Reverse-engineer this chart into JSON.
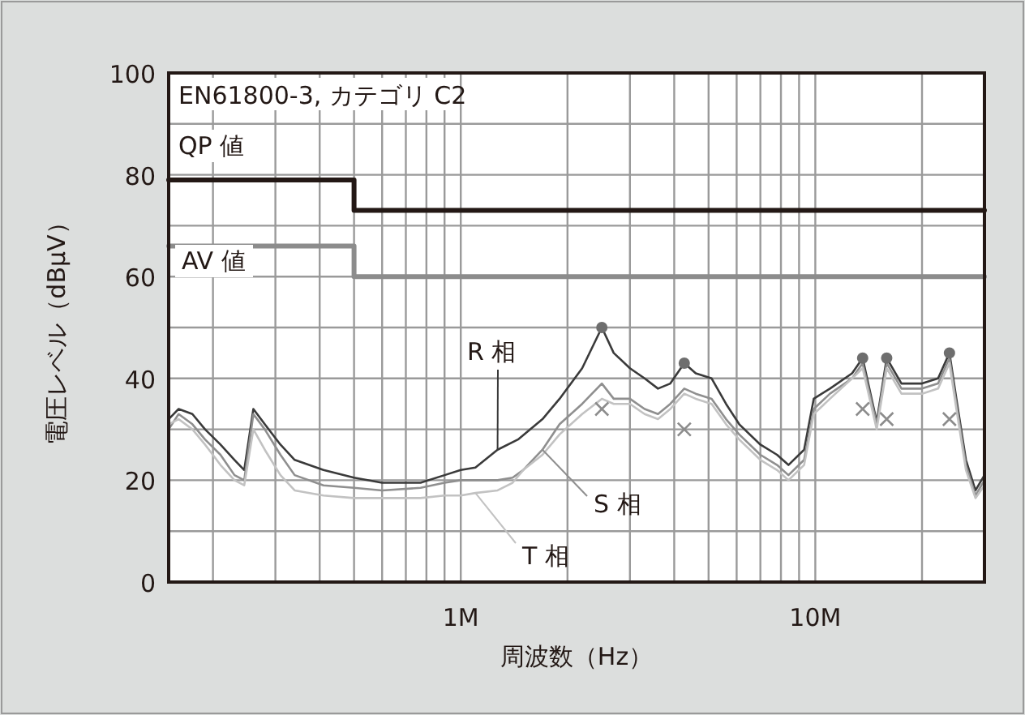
{
  "chart_data": {
    "type": "line",
    "title": "EN61800-3, カテゴリ C2",
    "xlabel": "周波数（Hz）",
    "ylabel": "電圧レベル（dBµV）",
    "log": "x",
    "grid": true,
    "legend": false,
    "xlim": [
      150000,
      30000000
    ],
    "xticks": [
      {
        "value": 200000,
        "label": null
      },
      {
        "value": 300000,
        "label": null
      },
      {
        "value": 400000,
        "label": null
      },
      {
        "value": 500000,
        "label": null
      },
      {
        "value": 600000,
        "label": null
      },
      {
        "value": 700000,
        "label": null
      },
      {
        "value": 800000,
        "label": null
      },
      {
        "value": 900000,
        "label": null
      },
      {
        "value": 1000000,
        "label": "1M"
      },
      {
        "value": 2000000,
        "label": null
      },
      {
        "value": 3000000,
        "label": null
      },
      {
        "value": 4000000,
        "label": null
      },
      {
        "value": 5000000,
        "label": null
      },
      {
        "value": 6000000,
        "label": null
      },
      {
        "value": 7000000,
        "label": null
      },
      {
        "value": 8000000,
        "label": null
      },
      {
        "value": 9000000,
        "label": null
      },
      {
        "value": 10000000,
        "label": "10M"
      },
      {
        "value": 20000000,
        "label": null
      }
    ],
    "ylim": [
      0,
      100
    ],
    "yticks": [
      0,
      {
        "value": 10,
        "label": null
      },
      20,
      {
        "value": 30,
        "label": null
      },
      40,
      {
        "value": 50,
        "label": null
      },
      60,
      {
        "value": 70,
        "label": null
      },
      80,
      {
        "value": 90,
        "label": null
      },
      100
    ],
    "series": [
      {
        "name": "QP 値",
        "color": "#231815",
        "x": [
          150000,
          500000,
          500000,
          30000000
        ],
        "values": [
          79,
          79,
          73,
          73
        ]
      },
      {
        "name": "AV 値",
        "color": "#8c8c8c",
        "x": [
          150000,
          500000,
          500000,
          30000000
        ],
        "values": [
          66,
          66,
          60,
          60
        ]
      },
      {
        "name": "R 相",
        "color": "#3a3a3a",
        "x": [
          150000,
          160000,
          175000,
          190000,
          210000,
          230000,
          245000,
          260000,
          280000,
          310000,
          340000,
          410000,
          500000,
          600000,
          770000,
          900000,
          1000000,
          1100000,
          1270000,
          1450000,
          1700000,
          1900000,
          2200000,
          2500000,
          2700000,
          3000000,
          3300000,
          3600000,
          3900000,
          4270000,
          4600000,
          5100000,
          5600000,
          6100000,
          7000000,
          7800000,
          8400000,
          9300000,
          9900000,
          11000000,
          12700000,
          13600000,
          14900000,
          15900000,
          17500000,
          20000000,
          22200000,
          23900000,
          25000000,
          26600000,
          28300000,
          30000000
        ],
        "values": [
          32,
          34,
          33,
          30,
          27,
          24,
          22,
          34,
          31,
          27,
          24,
          22,
          20.5,
          19.5,
          19.5,
          21,
          22,
          22.5,
          26,
          28,
          32,
          36,
          42,
          50,
          45,
          42,
          40,
          38,
          39,
          43,
          41,
          40,
          35,
          31,
          27,
          25,
          23,
          26,
          36,
          38,
          41,
          44,
          31.5,
          44,
          39,
          39,
          40,
          45,
          36,
          24,
          18,
          21
        ]
      },
      {
        "name": "S 相",
        "color": "#8f8f8f",
        "x": [
          150000,
          160000,
          175000,
          190000,
          210000,
          230000,
          245000,
          260000,
          280000,
          310000,
          340000,
          410000,
          500000,
          600000,
          770000,
          900000,
          1000000,
          1100000,
          1270000,
          1400000,
          1500000,
          1700000,
          1900000,
          2200000,
          2500000,
          2700000,
          3000000,
          3300000,
          3600000,
          3900000,
          4270000,
          4600000,
          5100000,
          5600000,
          6100000,
          7000000,
          7800000,
          8400000,
          9300000,
          9900000,
          11000000,
          12700000,
          13600000,
          14900000,
          15900000,
          17500000,
          20000000,
          22200000,
          23900000,
          25000000,
          26600000,
          28300000,
          30000000
        ],
        "values": [
          30,
          33,
          31,
          28,
          25,
          21,
          20,
          33,
          30,
          25,
          21,
          19,
          18.5,
          18,
          18.5,
          19.5,
          20,
          20,
          20,
          20.5,
          22,
          26,
          31,
          35,
          39,
          36,
          36,
          34,
          33,
          35,
          38,
          37,
          36,
          32,
          29,
          25,
          23,
          21,
          24,
          34,
          37,
          40,
          43,
          31,
          43,
          38,
          38,
          39,
          44,
          35,
          23,
          17,
          20
        ]
      },
      {
        "name": "T 相",
        "color": "#c2c2c2",
        "x": [
          150000,
          160000,
          175000,
          190000,
          210000,
          230000,
          245000,
          260000,
          280000,
          310000,
          340000,
          410000,
          500000,
          600000,
          770000,
          900000,
          1000000,
          1100000,
          1270000,
          1400000,
          1500000,
          1700000,
          1900000,
          2200000,
          2500000,
          2700000,
          3000000,
          3300000,
          3600000,
          3900000,
          4270000,
          4600000,
          5100000,
          5600000,
          6100000,
          7000000,
          7800000,
          8400000,
          9300000,
          9900000,
          11000000,
          12700000,
          13600000,
          14900000,
          15900000,
          17500000,
          20000000,
          22200000,
          23900000,
          25000000,
          26600000,
          28300000,
          30000000
        ],
        "values": [
          31,
          32,
          30,
          27,
          23,
          20,
          19,
          30,
          26,
          21,
          18,
          17,
          16.5,
          16.5,
          16.5,
          17,
          17,
          17.5,
          18,
          19.5,
          22,
          25,
          29,
          33,
          36,
          35,
          35,
          33,
          32,
          34,
          37,
          36,
          35,
          31,
          28,
          24,
          22,
          20,
          23,
          33,
          36,
          40,
          42,
          30,
          42,
          37,
          37,
          38,
          43,
          34,
          22,
          16.5,
          19
        ]
      },
      {
        "type": "scatter",
        "marker": "circle",
        "color": "#6e6e6e",
        "x": [
          2500000,
          4270000,
          13600000,
          15900000,
          23900000
        ],
        "values": [
          50,
          43,
          44,
          44,
          45
        ]
      },
      {
        "type": "scatter",
        "marker": "cross",
        "color": "#8c8c8c",
        "x": [
          2500000,
          4270000,
          13600000,
          15900000,
          23900000
        ],
        "values": [
          34,
          30,
          34,
          32,
          32
        ]
      }
    ]
  }
}
